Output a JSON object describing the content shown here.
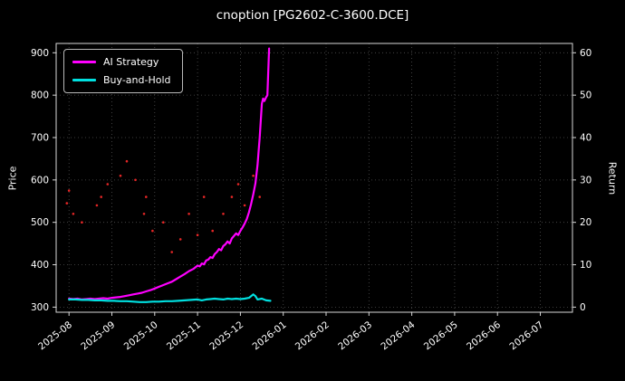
{
  "title": "cnoption [PG2602-C-3600.DCE]",
  "chart_data": {
    "type": "line",
    "title": "cnoption [PG2602-C-3600.DCE]",
    "xlabel": "",
    "ylabel_left": "Price",
    "ylabel_right": "Return",
    "grid": true,
    "legend_position": "upper-left",
    "background": "#000000",
    "grid_color": "#4f4f4f",
    "spine_color": "#d8d8d8",
    "x_tick_labels": [
      "2025-08",
      "2025-09",
      "2025-10",
      "2025-11",
      "2025-12",
      "2026-01",
      "2026-02",
      "2026-03",
      "2026-04",
      "2026-05",
      "2026-06",
      "2026-07"
    ],
    "x_tick_values": [
      0,
      1,
      2,
      3,
      4,
      5,
      6,
      7,
      8,
      9,
      10,
      11
    ],
    "xlim": [
      -0.3,
      11.75
    ],
    "ylim_left": [
      288,
      922
    ],
    "ylim_right": [
      -1.2,
      62.2
    ],
    "y_ticks_left": [
      300,
      400,
      500,
      600,
      700,
      800,
      900
    ],
    "y_ticks_right": [
      0,
      10,
      20,
      30,
      40,
      50,
      60
    ],
    "series": [
      {
        "name": "AI Strategy",
        "color": "#ff00ff",
        "type": "line",
        "width": 2.2,
        "in_legend": true,
        "x": [
          0,
          0.1,
          0.2,
          0.3,
          0.4,
          0.5,
          0.6,
          0.7,
          0.8,
          0.9,
          1.0,
          1.1,
          1.2,
          1.3,
          1.4,
          1.5,
          1.6,
          1.7,
          1.8,
          1.9,
          2.0,
          2.1,
          2.2,
          2.3,
          2.4,
          2.5,
          2.6,
          2.7,
          2.8,
          2.9,
          3.0,
          3.05,
          3.1,
          3.15,
          3.2,
          3.25,
          3.3,
          3.35,
          3.4,
          3.45,
          3.5,
          3.55,
          3.6,
          3.65,
          3.7,
          3.75,
          3.8,
          3.85,
          3.9,
          3.95,
          4.0,
          4.05,
          4.1,
          4.15,
          4.2,
          4.25,
          4.3,
          4.35,
          4.4,
          4.45,
          4.5,
          4.53,
          4.56,
          4.6,
          4.63,
          4.67
        ],
        "y": [
          320,
          319,
          320,
          318,
          319,
          320,
          319,
          320,
          321,
          320,
          322,
          323,
          324,
          326,
          328,
          330,
          332,
          334,
          337,
          340,
          344,
          348,
          352,
          356,
          360,
          366,
          372,
          378,
          385,
          390,
          398,
          396,
          403,
          401,
          410,
          412,
          418,
          416,
          425,
          430,
          437,
          434,
          444,
          448,
          455,
          450,
          462,
          468,
          474,
          470,
          480,
          488,
          497,
          508,
          524,
          543,
          566,
          592,
          635,
          700,
          780,
          792,
          786,
          795,
          800,
          910
        ]
      },
      {
        "name": "Buy-and-Hold",
        "color": "#00e0e0",
        "type": "line",
        "width": 2.2,
        "in_legend": true,
        "x": [
          0,
          0.15,
          0.3,
          0.45,
          0.6,
          0.75,
          0.9,
          1.05,
          1.2,
          1.35,
          1.5,
          1.65,
          1.8,
          1.95,
          2.1,
          2.25,
          2.4,
          2.55,
          2.7,
          2.85,
          3.0,
          3.1,
          3.2,
          3.3,
          3.4,
          3.5,
          3.6,
          3.7,
          3.8,
          3.9,
          4.0,
          4.1,
          4.2,
          4.3,
          4.35,
          4.4,
          4.5,
          4.6,
          4.7
        ],
        "y": [
          318,
          318,
          317,
          317,
          316,
          316,
          315,
          315,
          314,
          314,
          313,
          312,
          312,
          313,
          313,
          314,
          314,
          315,
          316,
          317,
          318,
          316,
          318,
          319,
          320,
          319,
          318,
          320,
          319,
          320,
          319,
          320,
          322,
          330,
          326,
          318,
          320,
          316,
          315
        ]
      },
      {
        "name": "signal-points",
        "color": "#ff2a2a",
        "type": "scatter",
        "radius": 1.3,
        "in_legend": false,
        "x": [
          -0.05,
          0.0,
          0.1,
          0.3,
          0.65,
          0.75,
          0.9,
          1.2,
          1.35,
          1.55,
          1.75,
          1.8,
          1.95,
          2.2,
          2.4,
          2.6,
          2.8,
          3.0,
          3.15,
          3.35,
          3.6,
          3.8,
          3.95,
          4.1,
          4.3,
          4.45
        ],
        "y": [
          545,
          575,
          520,
          500,
          540,
          560,
          590,
          610,
          644,
          600,
          520,
          560,
          480,
          500,
          430,
          460,
          520,
          470,
          560,
          480,
          520,
          560,
          590,
          540,
          610,
          560
        ]
      }
    ]
  }
}
